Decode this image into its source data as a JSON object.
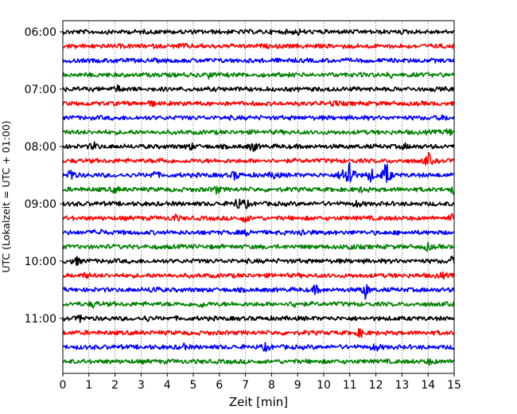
{
  "chart_data": {
    "type": "line",
    "title": "",
    "xlabel": "Zeit  [min]",
    "ylabel": "UTC (Lokalzeit = UTC + 01:00)",
    "xlim": [
      0,
      15
    ],
    "x_ticks": [
      0,
      1,
      2,
      3,
      4,
      5,
      6,
      7,
      8,
      9,
      10,
      11,
      12,
      13,
      14,
      15
    ],
    "y_tick_labels": [
      "06:00",
      "07:00",
      "08:00",
      "09:00",
      "10:00",
      "11:00"
    ],
    "y_tick_rows": [
      0,
      4,
      8,
      12,
      16,
      20
    ],
    "vertical_grid": true,
    "legend": "none",
    "trace_interval_min": 15,
    "trace_colors": [
      "#000000",
      "#ff0000",
      "#0000ff",
      "#008000"
    ],
    "traces": [
      {
        "start": "06:00",
        "events": [
          [
            9.0,
            0.3
          ]
        ]
      },
      {
        "start": "06:15",
        "events": [
          [
            4.6,
            0.25
          ]
        ]
      },
      {
        "start": "06:30",
        "events": [
          [
            2.0,
            0.2
          ]
        ]
      },
      {
        "start": "06:45",
        "events": [
          [
            5.6,
            0.35
          ],
          [
            12.6,
            0.25
          ]
        ]
      },
      {
        "start": "07:00",
        "events": [
          [
            2.1,
            0.4
          ]
        ]
      },
      {
        "start": "07:15",
        "events": [
          [
            3.4,
            0.3
          ],
          [
            10.4,
            0.45
          ]
        ]
      },
      {
        "start": "07:30",
        "events": [
          [
            14.6,
            0.25
          ]
        ]
      },
      {
        "start": "07:45",
        "events": [
          [
            14.8,
            0.5
          ]
        ]
      },
      {
        "start": "08:00",
        "events": [
          [
            1.2,
            0.5
          ],
          [
            4.9,
            0.4
          ],
          [
            7.3,
            0.7
          ],
          [
            13.1,
            0.3
          ]
        ]
      },
      {
        "start": "08:15",
        "events": [
          [
            3.8,
            0.3
          ],
          [
            14.0,
            1.0
          ]
        ]
      },
      {
        "start": "08:30",
        "events": [
          [
            0.3,
            1.0
          ],
          [
            3.5,
            0.5
          ],
          [
            6.6,
            0.6
          ],
          [
            8.1,
            0.5
          ],
          [
            10.7,
            0.9
          ],
          [
            11.0,
            3.0
          ],
          [
            11.8,
            1.0
          ],
          [
            12.4,
            2.0
          ]
        ]
      },
      {
        "start": "08:45",
        "events": [
          [
            2.0,
            0.4
          ],
          [
            5.9,
            0.5
          ],
          [
            11.5,
            0.4
          ],
          [
            15.0,
            0.6
          ]
        ]
      },
      {
        "start": "09:00",
        "events": [
          [
            6.7,
            0.8
          ],
          [
            7.0,
            0.5
          ],
          [
            11.3,
            0.4
          ]
        ]
      },
      {
        "start": "09:15",
        "events": [
          [
            4.3,
            0.4
          ],
          [
            7.0,
            0.5
          ],
          [
            14.9,
            0.4
          ]
        ]
      },
      {
        "start": "09:30",
        "events": [
          [
            1.4,
            0.5
          ],
          [
            7.1,
            0.4
          ],
          [
            9.2,
            0.5
          ]
        ]
      },
      {
        "start": "09:45",
        "events": [
          [
            11.0,
            0.4
          ],
          [
            14.0,
            0.5
          ]
        ]
      },
      {
        "start": "10:00",
        "events": [
          [
            0.5,
            0.6
          ],
          [
            14.9,
            0.5
          ]
        ]
      },
      {
        "start": "10:15",
        "events": [
          [
            0.9,
            0.3
          ],
          [
            14.5,
            0.4
          ]
        ]
      },
      {
        "start": "10:30",
        "events": [
          [
            3.5,
            0.5
          ],
          [
            9.7,
            0.6
          ],
          [
            11.6,
            1.1
          ]
        ]
      },
      {
        "start": "10:45",
        "events": [
          [
            1.2,
            0.4
          ],
          [
            5.3,
            0.4
          ],
          [
            8.9,
            0.4
          ]
        ]
      },
      {
        "start": "11:00",
        "events": [
          [
            0.7,
            0.5
          ],
          [
            3.2,
            0.3
          ]
        ]
      },
      {
        "start": "11:15",
        "events": [
          [
            11.4,
            0.6
          ]
        ]
      },
      {
        "start": "11:30",
        "events": [
          [
            4.6,
            0.4
          ],
          [
            7.8,
            0.5
          ],
          [
            12.0,
            0.5
          ]
        ]
      },
      {
        "start": "11:45",
        "events": [
          [
            14.1,
            0.4
          ]
        ]
      }
    ]
  }
}
